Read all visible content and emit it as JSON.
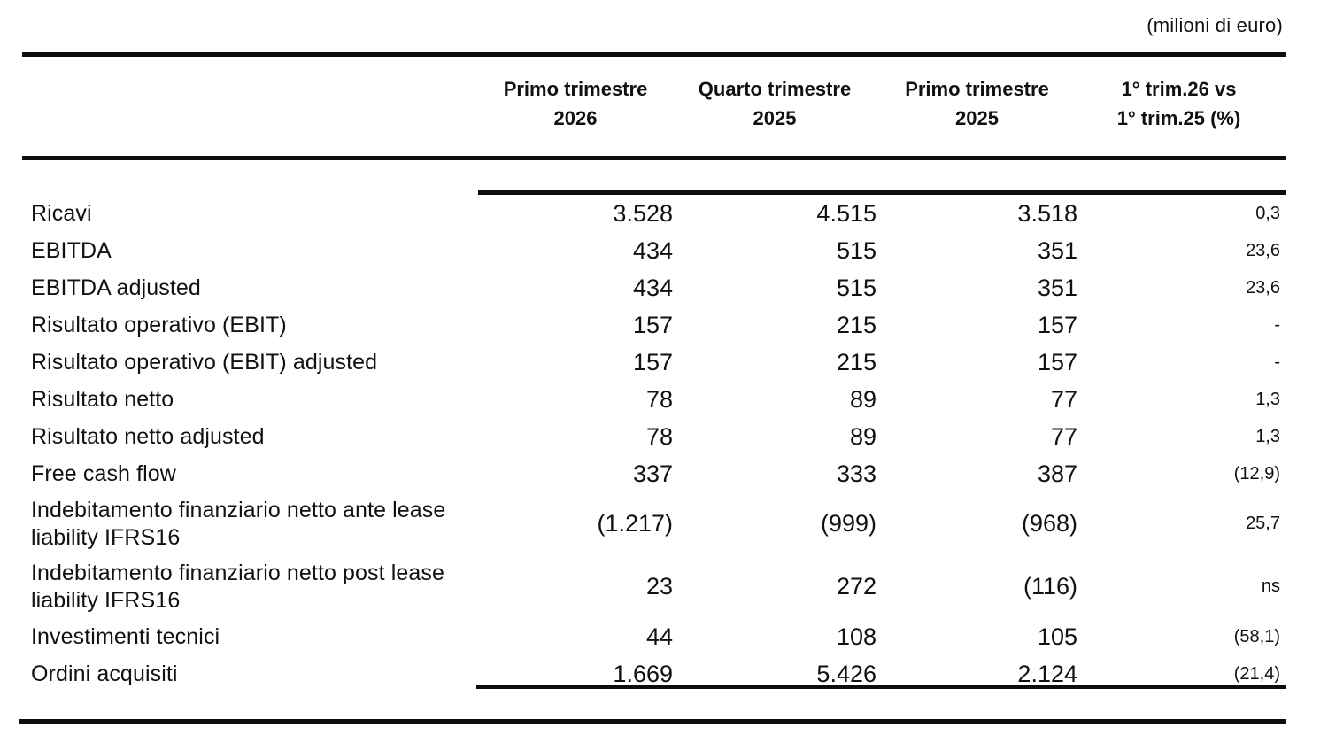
{
  "unit_note": "(milioni di euro)",
  "colors": {
    "text": "#111111",
    "rule": "#0d0d0d",
    "background": "#ffffff"
  },
  "table": {
    "headers": [
      {
        "line1": "Primo trimestre",
        "line2": "2026"
      },
      {
        "line1": "Quarto trimestre",
        "line2": "2025"
      },
      {
        "line1": "Primo trimestre",
        "line2": "2025"
      },
      {
        "line1": "1° trim.26 vs",
        "line2": "1° trim.25 (%)"
      }
    ],
    "rows": [
      {
        "label": "Ricavi",
        "values": [
          "3.528",
          "4.515",
          "3.518",
          "0,3"
        ]
      },
      {
        "label": "EBITDA",
        "values": [
          "434",
          "515",
          "351",
          "23,6"
        ]
      },
      {
        "label": "EBITDA adjusted",
        "values": [
          "434",
          "515",
          "351",
          "23,6"
        ]
      },
      {
        "label": "Risultato operativo (EBIT)",
        "values": [
          "157",
          "215",
          "157",
          "-"
        ]
      },
      {
        "label": "Risultato operativo (EBIT) adjusted",
        "values": [
          "157",
          "215",
          "157",
          "-"
        ]
      },
      {
        "label": "Risultato netto",
        "values": [
          "78",
          "89",
          "77",
          "1,3"
        ]
      },
      {
        "label": "Risultato netto adjusted",
        "values": [
          "78",
          "89",
          "77",
          "1,3"
        ]
      },
      {
        "label": "Free cash flow",
        "values": [
          "337",
          "333",
          "387",
          "(12,9)"
        ]
      },
      {
        "label": "Indebitamento finanziario netto ante lease liability IFRS16",
        "values": [
          "(1.217)",
          "(999)",
          "(968)",
          "25,7"
        ]
      },
      {
        "label": "Indebitamento finanziario netto post lease liability IFRS16",
        "values": [
          "23",
          "272",
          "(116)",
          "ns"
        ]
      },
      {
        "label": "Investimenti tecnici",
        "values": [
          "44",
          "108",
          "105",
          "(58,1)"
        ]
      },
      {
        "label": "Ordini acquisiti",
        "values": [
          "1.669",
          "5.426",
          "2.124",
          "(21,4)"
        ]
      }
    ]
  }
}
